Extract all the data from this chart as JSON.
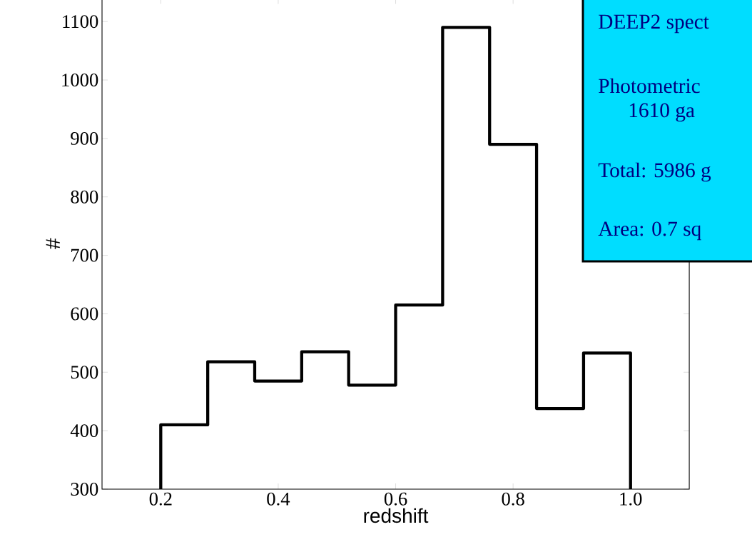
{
  "chart_data": {
    "type": "histogram",
    "xlabel": "redshift",
    "ylabel": "#",
    "bins": [
      0.2,
      0.28,
      0.36,
      0.44,
      0.52,
      0.6,
      0.68,
      0.76,
      0.84,
      0.92,
      1.0
    ],
    "values": [
      410,
      518,
      485,
      535,
      478,
      615,
      1090,
      890,
      438,
      533
    ],
    "color": "#000000",
    "xlim": [
      0.1,
      1.1
    ],
    "ylim": [
      300,
      1140
    ],
    "xticks": [
      0.2,
      0.4,
      0.6,
      0.8,
      {
        "value": 1.0,
        "label": "1.0"
      }
    ],
    "yticks": [
      300,
      400,
      500,
      600,
      700,
      800,
      900,
      1000,
      1100
    ],
    "annotations": [
      "DEEP2 spect",
      "Photometric",
      "1610 ga",
      "Total: 5986 g",
      "Area: 0.7 sq"
    ]
  }
}
